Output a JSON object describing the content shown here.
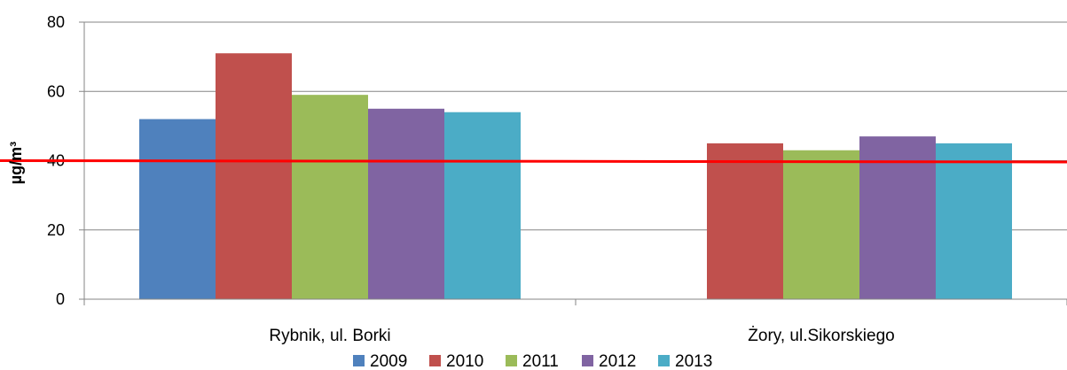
{
  "chart_data": {
    "type": "bar",
    "title": "",
    "xlabel": "",
    "ylabel": "µg/m³",
    "ylim": [
      0,
      80
    ],
    "yticks": [
      0,
      20,
      40,
      60,
      80
    ],
    "grid": true,
    "legend_position": "bottom",
    "categories": [
      "Rybnik, ul. Borki",
      "Żory, ul.Sikorskiego"
    ],
    "series": [
      {
        "name": "2009",
        "color": "#4F81BD",
        "values": [
          52,
          null
        ]
      },
      {
        "name": "2010",
        "color": "#C0504D",
        "values": [
          71,
          45
        ]
      },
      {
        "name": "2011",
        "color": "#9BBB59",
        "values": [
          59,
          43
        ]
      },
      {
        "name": "2012",
        "color": "#8064A2",
        "values": [
          55,
          47
        ]
      },
      {
        "name": "2013",
        "color": "#4BACC6",
        "values": [
          54,
          45
        ]
      }
    ],
    "reference_line": {
      "value": 40,
      "color": "#FF0000"
    }
  }
}
